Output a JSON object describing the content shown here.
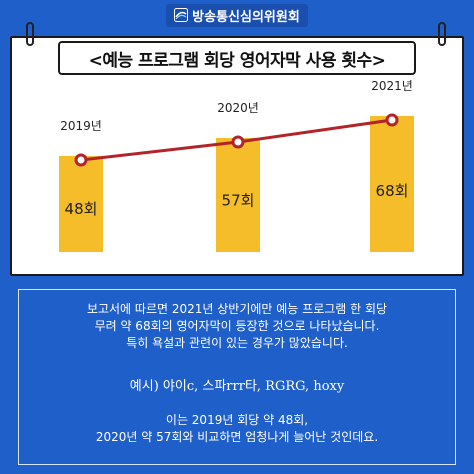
{
  "brand": {
    "name": "방송통신심의위원회"
  },
  "colors": {
    "background": "#1f5fc9",
    "bar": "#f6bd2b",
    "line": "#b3242a"
  },
  "chart_data": {
    "type": "bar",
    "title": "<예능 프로그램 회당 영어자막 사용 횟수>",
    "categories": [
      "2019년",
      "2020년",
      "2021년"
    ],
    "values": [
      48,
      57,
      68
    ],
    "value_labels": [
      "48회",
      "57회",
      "68회"
    ],
    "overlay": "line",
    "xlabel": "",
    "ylabel": "",
    "ylim": [
      0,
      100
    ],
    "grid": false,
    "legend": "none"
  },
  "description": {
    "para1_line1": "보고서에 따르면 2021년 상반기에만 예능 프로그램 한 회당",
    "para1_line2": "무려 약 68회의 영어자막이 등장한 것으로 나타났습니다.",
    "para1_line3": "특히 욕설과 관련이 있는 경우가 많았습니다.",
    "example": "예시) 야이c, 스파rrr타, RGRG, hoxy",
    "para2_line1": "이는 2019년 회당 약 48회,",
    "para2_line2": "2020년 약 57회와 비교하면 엄청나게 늘어난 것인데요."
  }
}
